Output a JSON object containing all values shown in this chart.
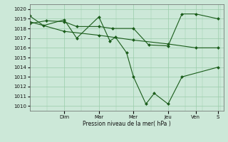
{
  "bg_color": "#cce8d8",
  "grid_color": "#99ccaa",
  "line_color": "#1a5c1a",
  "marker_color": "#1a5c1a",
  "xlabel": "Pression niveau de la mer( hPa )",
  "ylim": [
    1009.5,
    1020.5
  ],
  "yticks": [
    1010,
    1011,
    1012,
    1013,
    1014,
    1015,
    1016,
    1017,
    1018,
    1019,
    1020
  ],
  "xlim": [
    0,
    7.0
  ],
  "day_labels": [
    "Dim",
    "Mar",
    "Mer",
    "Jeu",
    "Ven",
    "S"
  ],
  "day_positions": [
    1.25,
    2.5,
    3.75,
    5.0,
    6.0,
    6.8
  ],
  "series": [
    {
      "x": [
        0.0,
        0.5,
        1.25,
        1.7,
        2.5,
        2.9,
        3.1,
        3.5,
        3.75,
        4.2,
        4.5,
        5.0,
        5.5,
        6.8
      ],
      "y": [
        1019.3,
        1018.3,
        1018.9,
        1017.0,
        1019.2,
        1016.7,
        1017.1,
        1015.5,
        1013.0,
        1010.2,
        1011.3,
        1010.2,
        1013.0,
        1014.0
      ]
    },
    {
      "x": [
        0.0,
        0.6,
        1.25,
        1.7,
        2.5,
        3.0,
        3.75,
        4.3,
        5.0,
        5.5,
        6.0,
        6.8
      ],
      "y": [
        1018.5,
        1018.8,
        1018.7,
        1018.2,
        1018.2,
        1018.0,
        1018.0,
        1016.3,
        1016.2,
        1019.5,
        1019.5,
        1019.0
      ]
    },
    {
      "x": [
        0.0,
        1.25,
        2.5,
        3.75,
        5.0,
        6.0,
        6.8
      ],
      "y": [
        1018.7,
        1017.7,
        1017.3,
        1016.8,
        1016.4,
        1016.0,
        1016.0
      ]
    }
  ]
}
